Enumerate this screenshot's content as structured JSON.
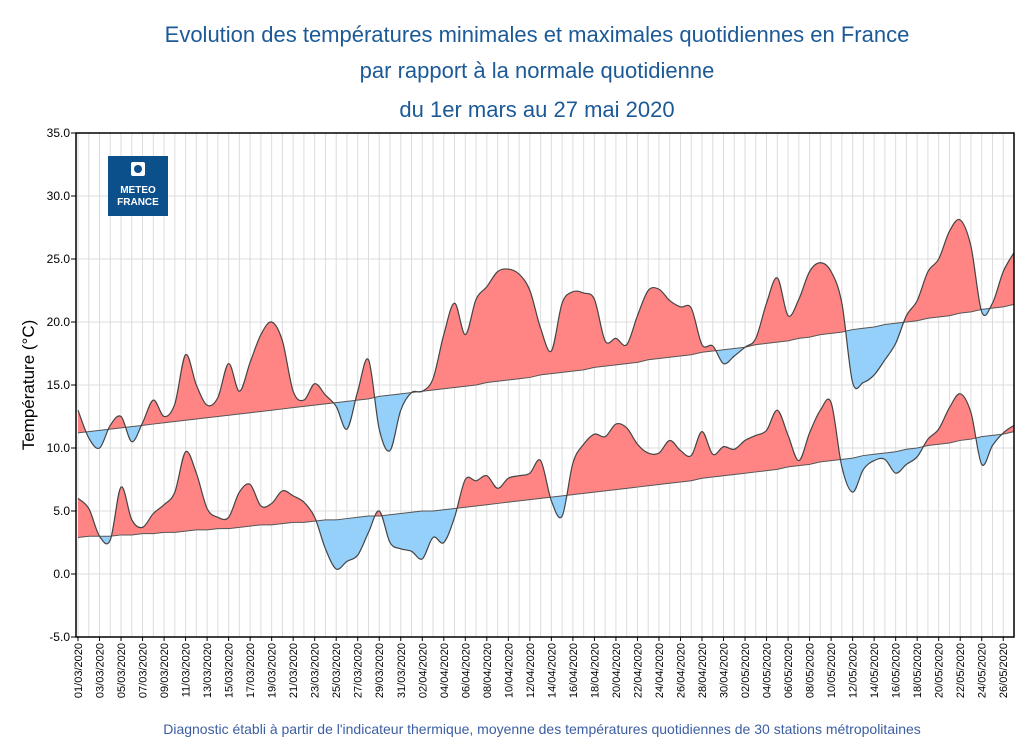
{
  "title_lines": [
    "Evolution des températures minimales et maximales quotidiennes en France",
    "par rapport à la normale quotidienne",
    "du 1er mars au 27 mai 2020"
  ],
  "footer": "Diagnostic établi à partir de l'indicateur thermique, moyenne des températures quotidiennes de 30 stations métropolitaines",
  "logo": {
    "line1": "METEO",
    "line2": "FRANCE",
    "color": "#0b4f8b"
  },
  "colors": {
    "above_normal": "#ff8585",
    "below_normal": "#94d0fa",
    "line": "#444444",
    "title": "#1c5a97"
  },
  "chart_data": {
    "type": "area",
    "ylabel": "Température (°C)",
    "ylim": [
      -5,
      35
    ],
    "yticks": [
      "-5.0",
      "0.0",
      "5.0",
      "10.0",
      "15.0",
      "20.0",
      "25.0",
      "30.0",
      "35.0"
    ],
    "grid": true,
    "x_start": "01/03/2020",
    "x_end": "27/05/2020",
    "xtick_labels": [
      "01/03/2020",
      "03/03/2020",
      "05/03/2020",
      "07/03/2020",
      "09/03/2020",
      "11/03/2020",
      "13/03/2020",
      "15/03/2020",
      "17/03/2020",
      "19/03/2020",
      "21/03/2020",
      "23/03/2020",
      "25/03/2020",
      "27/03/2020",
      "29/03/2020",
      "31/03/2020",
      "02/04/2020",
      "04/04/2020",
      "06/04/2020",
      "08/04/2020",
      "10/04/2020",
      "12/04/2020",
      "14/04/2020",
      "16/04/2020",
      "18/04/2020",
      "20/04/2020",
      "22/04/2020",
      "24/04/2020",
      "26/04/2020",
      "28/04/2020",
      "30/04/2020",
      "02/05/2020",
      "04/05/2020",
      "06/05/2020",
      "08/05/2020",
      "10/05/2020",
      "12/05/2020",
      "14/05/2020",
      "16/05/2020",
      "18/05/2020",
      "20/05/2020",
      "22/05/2020",
      "24/05/2020",
      "26/05/2020"
    ],
    "series": [
      {
        "values": [
          13,
          10.8,
          10,
          11.8,
          12.5,
          10.5,
          12,
          13.8,
          12.5,
          13.5,
          17.4,
          15,
          13.4,
          14,
          16.7,
          14.5,
          16.8,
          19,
          20,
          18.5,
          14.5,
          13.8,
          15.1,
          14.2,
          13.3,
          11.5,
          14.5,
          17,
          11.5,
          9.8,
          13,
          14.4,
          14.5,
          15.5,
          19,
          21.5,
          19,
          21.8,
          22.8,
          24,
          24.2,
          23.8,
          22.5,
          19.5,
          17.7,
          21.5,
          22.4,
          22.3,
          21.8,
          18.5,
          18.7,
          18.2,
          20.5,
          22.5,
          22.6,
          21.7,
          21.2,
          21.1,
          18.2,
          18.1,
          16.7,
          17.3,
          18,
          18.7,
          21.5,
          23.5,
          20.5,
          21.8,
          24,
          24.7,
          24,
          21.5,
          15.2,
          15.2,
          15.8,
          17,
          18.3,
          20.5,
          21.7,
          24,
          25,
          27.2,
          28.1,
          26,
          20.8,
          21.5,
          24,
          25.5
        ],
        "normal": [
          11.2,
          11.3,
          11.4,
          11.5,
          11.6,
          11.7,
          11.8,
          11.9,
          12.0,
          12.1,
          12.2,
          12.3,
          12.4,
          12.5,
          12.6,
          12.7,
          12.8,
          12.9,
          13.0,
          13.1,
          13.2,
          13.3,
          13.4,
          13.5,
          13.6,
          13.7,
          13.8,
          13.9,
          14.1,
          14.2,
          14.3,
          14.4,
          14.5,
          14.6,
          14.7,
          14.8,
          14.9,
          15.0,
          15.2,
          15.3,
          15.4,
          15.5,
          15.6,
          15.8,
          15.9,
          16.0,
          16.1,
          16.2,
          16.4,
          16.5,
          16.6,
          16.7,
          16.8,
          17.0,
          17.1,
          17.2,
          17.3,
          17.4,
          17.6,
          17.7,
          17.8,
          17.9,
          18.0,
          18.2,
          18.3,
          18.4,
          18.5,
          18.7,
          18.8,
          19.0,
          19.1,
          19.2,
          19.4,
          19.5,
          19.6,
          19.8,
          19.9,
          20.0,
          20.1,
          20.3,
          20.4,
          20.5,
          20.7,
          20.8,
          21.0,
          21.1,
          21.2,
          21.4
        ]
      },
      {
        "values": [
          6,
          5.2,
          3,
          2.7,
          6.9,
          4.3,
          3.7,
          4.8,
          5.5,
          6.5,
          9.7,
          8,
          5.2,
          4.5,
          4.5,
          6.5,
          7.1,
          5.4,
          5.6,
          6.6,
          6.2,
          5.7,
          4.5,
          2,
          0.4,
          1,
          1.5,
          3.3,
          5,
          2.5,
          2,
          1.8,
          1.2,
          2.9,
          2.5,
          4.5,
          7.5,
          7.4,
          7.8,
          6.8,
          7.6,
          7.8,
          8,
          9,
          5.8,
          4.6,
          8.8,
          10.3,
          11.1,
          10.9,
          11.9,
          11.6,
          10.3,
          9.6,
          9.6,
          10.6,
          9.8,
          9.4,
          11.3,
          9.5,
          10.1,
          9.9,
          10.6,
          11,
          11.4,
          13,
          11,
          9,
          11.2,
          13,
          13.6,
          8.5,
          6.5,
          8.3,
          9,
          9.1,
          8,
          8.7,
          9.3,
          10.7,
          11.5,
          13.2,
          14.3,
          12.8,
          8.7,
          10.2,
          11.2,
          11.8
        ],
        "normal": [
          2.9,
          3.0,
          3.0,
          3.0,
          3.1,
          3.1,
          3.2,
          3.2,
          3.3,
          3.3,
          3.4,
          3.5,
          3.5,
          3.6,
          3.6,
          3.7,
          3.8,
          3.9,
          3.9,
          4.0,
          4.1,
          4.1,
          4.2,
          4.3,
          4.3,
          4.4,
          4.5,
          4.6,
          4.6,
          4.7,
          4.8,
          4.9,
          5.0,
          5.0,
          5.1,
          5.2,
          5.3,
          5.4,
          5.5,
          5.6,
          5.7,
          5.8,
          5.9,
          6.0,
          6.1,
          6.2,
          6.3,
          6.4,
          6.5,
          6.6,
          6.7,
          6.8,
          6.9,
          7.0,
          7.1,
          7.2,
          7.3,
          7.4,
          7.6,
          7.7,
          7.8,
          7.9,
          8.0,
          8.1,
          8.2,
          8.3,
          8.5,
          8.6,
          8.7,
          8.9,
          9.0,
          9.1,
          9.2,
          9.4,
          9.5,
          9.6,
          9.7,
          9.9,
          10.0,
          10.2,
          10.3,
          10.4,
          10.6,
          10.7,
          10.9,
          11.0,
          11.1,
          11.3
        ]
      }
    ]
  }
}
